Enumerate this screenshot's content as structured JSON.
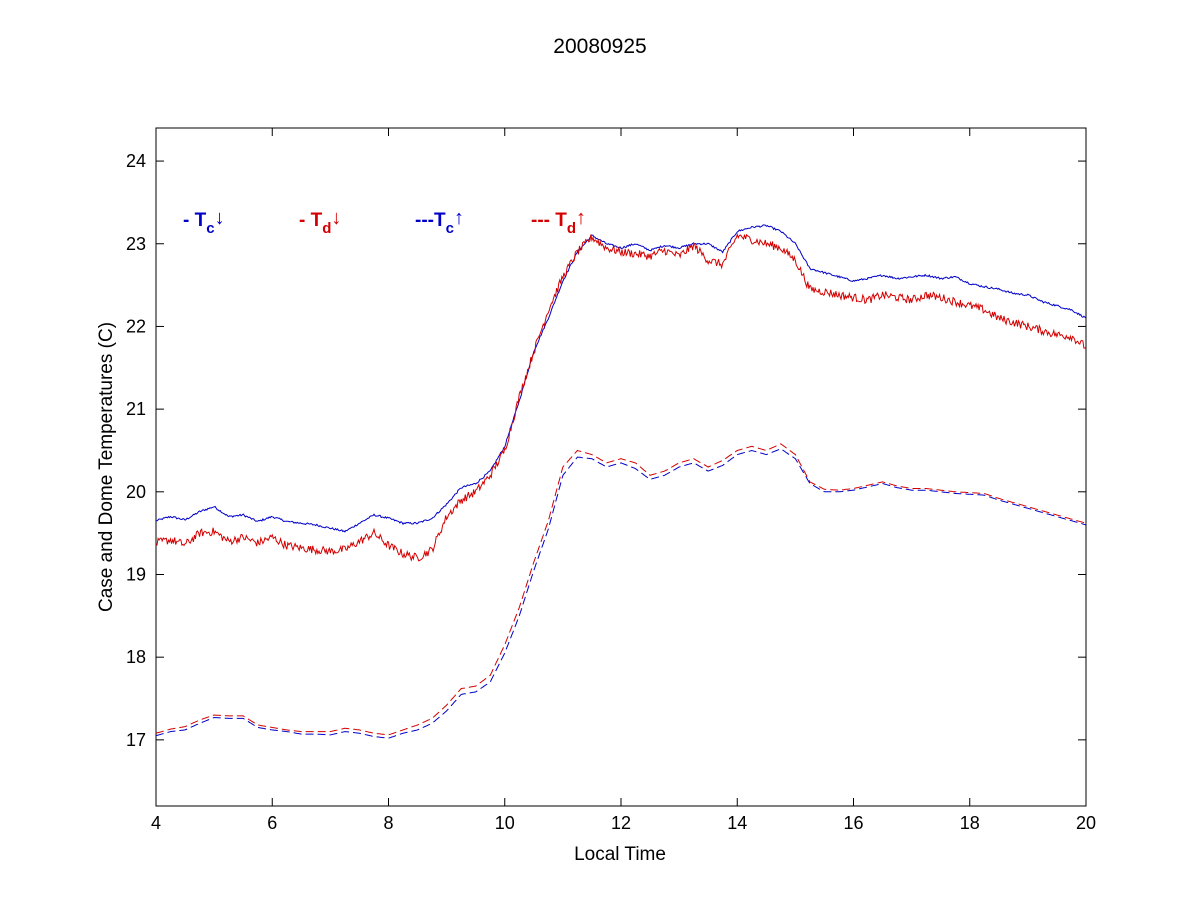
{
  "chart_data": {
    "type": "line",
    "title": "20080925",
    "xlabel": "Local Time",
    "ylabel": "Case and Dome Temperatures (C)",
    "xlim": [
      4,
      20
    ],
    "ylim": [
      16.2,
      24.4
    ],
    "xticks": [
      4,
      6,
      8,
      10,
      12,
      14,
      16,
      18,
      20
    ],
    "yticks": [
      17,
      18,
      19,
      20,
      21,
      22,
      23,
      24
    ],
    "grid": false,
    "legend": {
      "placement": "top-left",
      "entries": [
        {
          "prefix": "- T",
          "sub": "c",
          "arrow": "↓",
          "color": "#0000c8"
        },
        {
          "prefix": "- T",
          "sub": "d",
          "arrow": "↓",
          "color": "#d40000"
        },
        {
          "prefix": "---T",
          "sub": "c",
          "arrow": "↑",
          "color": "#0000c8"
        },
        {
          "prefix": "--- T",
          "sub": "d",
          "arrow": "↑",
          "color": "#d40000"
        }
      ]
    },
    "series": [
      {
        "color": "#0000c8",
        "dash": "solid",
        "noise": 0.012,
        "x": [
          4.0,
          4.25,
          4.5,
          4.75,
          5.0,
          5.25,
          5.5,
          5.75,
          6.0,
          6.25,
          6.5,
          6.75,
          7.0,
          7.25,
          7.5,
          7.75,
          8.0,
          8.25,
          8.5,
          8.75,
          9.0,
          9.25,
          9.5,
          9.75,
          10.0,
          10.25,
          10.5,
          10.75,
          11.0,
          11.25,
          11.5,
          11.75,
          12.0,
          12.25,
          12.5,
          12.75,
          13.0,
          13.25,
          13.5,
          13.75,
          14.0,
          14.25,
          14.5,
          14.75,
          15.0,
          15.25,
          15.5,
          15.75,
          16.0,
          16.25,
          16.5,
          16.75,
          17.0,
          17.25,
          17.5,
          17.75,
          18.0,
          18.25,
          18.5,
          18.75,
          19.0,
          19.25,
          19.5,
          19.75,
          20.0
        ],
        "values": [
          19.65,
          19.7,
          19.66,
          19.76,
          19.82,
          19.7,
          19.72,
          19.64,
          19.7,
          19.64,
          19.62,
          19.6,
          19.56,
          19.52,
          19.62,
          19.72,
          19.68,
          19.62,
          19.62,
          19.68,
          19.85,
          20.05,
          20.1,
          20.25,
          20.55,
          21.1,
          21.7,
          22.1,
          22.55,
          22.9,
          23.1,
          23.0,
          22.95,
          23.0,
          22.92,
          22.98,
          22.95,
          23.0,
          23.0,
          22.9,
          23.15,
          23.2,
          23.22,
          23.15,
          23.0,
          22.7,
          22.65,
          22.6,
          22.55,
          22.58,
          22.62,
          22.58,
          22.6,
          22.62,
          22.58,
          22.6,
          22.52,
          22.48,
          22.45,
          22.4,
          22.38,
          22.3,
          22.25,
          22.2,
          22.1
        ]
      },
      {
        "color": "#d40000",
        "dash": "solid",
        "noise": 0.05,
        "x": [
          4.0,
          4.25,
          4.5,
          4.75,
          5.0,
          5.25,
          5.5,
          5.75,
          6.0,
          6.25,
          6.5,
          6.75,
          7.0,
          7.25,
          7.5,
          7.75,
          8.0,
          8.25,
          8.5,
          8.75,
          9.0,
          9.25,
          9.5,
          9.75,
          10.0,
          10.25,
          10.5,
          10.75,
          11.0,
          11.25,
          11.5,
          11.75,
          12.0,
          12.25,
          12.5,
          12.75,
          13.0,
          13.25,
          13.5,
          13.75,
          14.0,
          14.25,
          14.5,
          14.75,
          15.0,
          15.25,
          15.5,
          15.75,
          16.0,
          16.25,
          16.5,
          16.75,
          17.0,
          17.25,
          17.5,
          17.75,
          18.0,
          18.25,
          18.5,
          18.75,
          19.0,
          19.25,
          19.5,
          19.75,
          20.0
        ],
        "values": [
          19.38,
          19.42,
          19.36,
          19.5,
          19.52,
          19.4,
          19.45,
          19.38,
          19.45,
          19.35,
          19.32,
          19.3,
          19.28,
          19.3,
          19.4,
          19.5,
          19.35,
          19.25,
          19.2,
          19.3,
          19.7,
          19.9,
          20.0,
          20.2,
          20.5,
          21.15,
          21.7,
          22.2,
          22.6,
          22.9,
          23.08,
          22.95,
          22.9,
          22.88,
          22.85,
          22.92,
          22.85,
          22.98,
          22.8,
          22.75,
          23.1,
          23.05,
          23.0,
          22.95,
          22.8,
          22.45,
          22.42,
          22.38,
          22.35,
          22.32,
          22.38,
          22.35,
          22.32,
          22.38,
          22.35,
          22.3,
          22.25,
          22.2,
          22.1,
          22.05,
          22.0,
          21.95,
          21.9,
          21.88,
          21.75
        ]
      },
      {
        "color": "#0000c8",
        "dash": "dashed",
        "noise": 0.0,
        "offset_x": 0.0,
        "x": [
          4.0,
          4.25,
          4.5,
          4.75,
          5.0,
          5.25,
          5.5,
          5.75,
          6.0,
          6.25,
          6.5,
          6.75,
          7.0,
          7.25,
          7.5,
          7.75,
          8.0,
          8.25,
          8.5,
          8.75,
          9.0,
          9.25,
          9.5,
          9.75,
          10.0,
          10.25,
          10.5,
          10.75,
          11.0,
          11.25,
          11.5,
          11.75,
          12.0,
          12.25,
          12.5,
          12.75,
          13.0,
          13.25,
          13.5,
          13.75,
          14.0,
          14.25,
          14.5,
          14.75,
          15.0,
          15.25,
          15.5,
          15.75,
          16.0,
          16.25,
          16.5,
          16.75,
          17.0,
          17.25,
          17.5,
          17.75,
          18.0,
          18.25,
          18.5,
          18.75,
          19.0,
          19.25,
          19.5,
          19.75,
          20.0
        ],
        "values": [
          17.05,
          17.1,
          17.12,
          17.2,
          17.27,
          17.26,
          17.26,
          17.15,
          17.12,
          17.1,
          17.07,
          17.07,
          17.06,
          17.1,
          17.08,
          17.04,
          17.02,
          17.08,
          17.12,
          17.2,
          17.35,
          17.55,
          17.58,
          17.7,
          18.05,
          18.5,
          19.05,
          19.55,
          20.2,
          20.42,
          20.4,
          20.3,
          20.35,
          20.28,
          20.15,
          20.2,
          20.3,
          20.35,
          20.25,
          20.32,
          20.45,
          20.5,
          20.45,
          20.52,
          20.4,
          20.1,
          20.0,
          20.0,
          20.02,
          20.06,
          20.1,
          20.05,
          20.02,
          20.02,
          20.0,
          19.98,
          19.97,
          19.96,
          19.9,
          19.85,
          19.8,
          19.75,
          19.7,
          19.65,
          19.6
        ]
      },
      {
        "color": "#d40000",
        "dash": "dashed",
        "noise": 0.0,
        "x": [
          4.0,
          4.25,
          4.5,
          4.75,
          5.0,
          5.25,
          5.5,
          5.75,
          6.0,
          6.25,
          6.5,
          6.75,
          7.0,
          7.25,
          7.5,
          7.75,
          8.0,
          8.25,
          8.5,
          8.75,
          9.0,
          9.25,
          9.5,
          9.75,
          10.0,
          10.25,
          10.5,
          10.75,
          11.0,
          11.25,
          11.5,
          11.75,
          12.0,
          12.25,
          12.5,
          12.75,
          13.0,
          13.25,
          13.5,
          13.75,
          14.0,
          14.25,
          14.5,
          14.75,
          15.0,
          15.25,
          15.5,
          15.75,
          16.0,
          16.25,
          16.5,
          16.75,
          17.0,
          17.25,
          17.5,
          17.75,
          18.0,
          18.25,
          18.5,
          18.75,
          19.0,
          19.25,
          19.5,
          19.75,
          20.0
        ],
        "values": [
          17.08,
          17.13,
          17.16,
          17.24,
          17.3,
          17.29,
          17.29,
          17.18,
          17.15,
          17.12,
          17.1,
          17.1,
          17.1,
          17.14,
          17.12,
          17.08,
          17.06,
          17.12,
          17.18,
          17.26,
          17.42,
          17.62,
          17.65,
          17.78,
          18.15,
          18.6,
          19.15,
          19.65,
          20.3,
          20.5,
          20.45,
          20.35,
          20.4,
          20.35,
          20.2,
          20.25,
          20.35,
          20.4,
          20.3,
          20.38,
          20.5,
          20.55,
          20.5,
          20.58,
          20.45,
          20.12,
          20.03,
          20.02,
          20.04,
          20.08,
          20.12,
          20.07,
          20.04,
          20.04,
          20.02,
          20.0,
          19.99,
          19.98,
          19.92,
          19.87,
          19.82,
          19.77,
          19.72,
          19.67,
          19.62
        ]
      }
    ]
  }
}
